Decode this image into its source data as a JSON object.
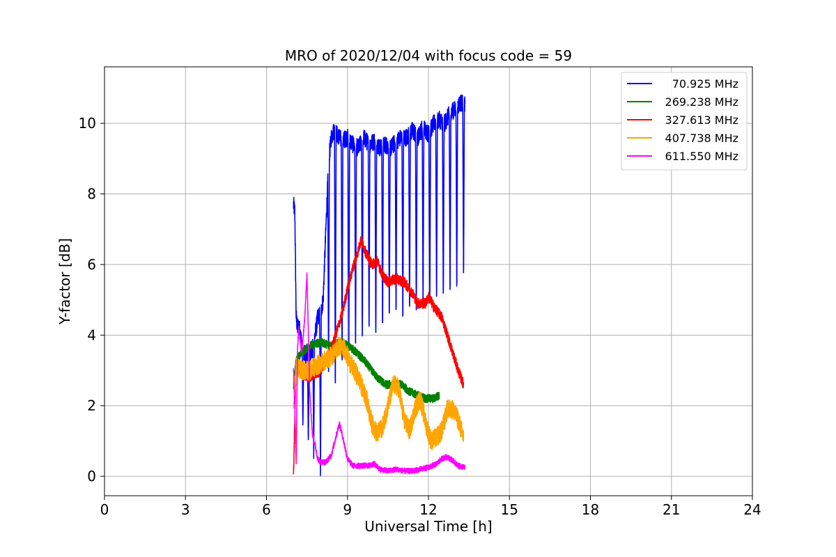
{
  "chart_data": {
    "type": "line",
    "title": "MRO of 2020/12/04 with focus code = 59",
    "xlabel": "Universal Time [h]",
    "ylabel": "Y-factor [dB]",
    "xlim": [
      0,
      24
    ],
    "ylim": [
      -0.55,
      11.6
    ],
    "x_ticks": [
      0,
      3,
      6,
      9,
      12,
      15,
      18,
      21,
      24
    ],
    "y_ticks": [
      0,
      2,
      4,
      6,
      8,
      10
    ],
    "x_tick_labels": [
      "0",
      "3",
      "6",
      "9",
      "12",
      "15",
      "18",
      "21",
      "24"
    ],
    "y_tick_labels": [
      "0",
      "2",
      "4",
      "6",
      "8",
      "10"
    ],
    "grid": true,
    "legend_position": "top-right",
    "legend_font": "small",
    "series": [
      {
        "name": "70.925 MHz",
        "color": "#0000ff",
        "x": [
          7.0,
          7.05,
          7.1,
          7.15,
          7.2,
          7.3,
          7.4,
          7.5,
          7.6,
          7.7,
          7.8,
          7.9,
          8.0,
          8.1,
          8.2,
          8.3,
          8.4,
          8.5,
          8.6,
          8.7,
          8.8,
          9.0,
          9.2,
          9.4,
          9.6,
          9.8,
          10.0,
          10.2,
          10.4,
          10.6,
          10.8,
          11.0,
          11.2,
          11.4,
          11.6,
          11.8,
          12.0,
          12.2,
          12.4,
          12.6,
          12.8,
          13.0,
          13.2,
          13.35
        ],
        "y": [
          7.7,
          7.5,
          4.5,
          4.2,
          4.3,
          3.8,
          3.5,
          3.4,
          3.4,
          3.6,
          4.0,
          4.5,
          4.6,
          5.0,
          7.0,
          8.9,
          9.6,
          9.8,
          9.7,
          9.6,
          9.5,
          9.6,
          9.4,
          9.3,
          9.6,
          9.4,
          9.5,
          9.3,
          9.4,
          9.3,
          9.5,
          9.6,
          9.6,
          9.8,
          9.6,
          9.9,
          9.7,
          10.0,
          10.1,
          10.0,
          10.3,
          10.4,
          10.6,
          10.5
        ],
        "dips_x": [
          7.35,
          7.55,
          7.75,
          8.0,
          8.3,
          8.55,
          8.8,
          9.05,
          9.3,
          9.55,
          9.8,
          10.05,
          10.3,
          10.55,
          10.8,
          11.05,
          11.3,
          11.55,
          11.8,
          12.05,
          12.3,
          12.55,
          12.8,
          13.05,
          13.3
        ],
        "dips_y": [
          1.4,
          0.9,
          0.5,
          0.0,
          2.6,
          2.2,
          2.9,
          3.3,
          3.4,
          3.6,
          3.9,
          3.7,
          4.0,
          4.3,
          4.4,
          4.2,
          4.5,
          4.4,
          4.6,
          4.7,
          4.8,
          4.9,
          5.0,
          5.1,
          5.5
        ]
      },
      {
        "name": "269.238 MHz",
        "color": "#008000",
        "x": [
          7.0,
          7.1,
          7.3,
          7.6,
          8.0,
          8.4,
          8.8,
          9.2,
          9.6,
          9.9,
          10.1,
          10.4,
          10.7,
          11.0,
          11.3,
          11.6,
          11.9,
          12.2,
          12.4
        ],
        "y": [
          2.5,
          3.3,
          3.5,
          3.7,
          3.8,
          3.7,
          3.8,
          3.6,
          3.3,
          3.0,
          2.8,
          2.6,
          2.6,
          2.6,
          2.4,
          2.3,
          2.2,
          2.2,
          2.3
        ]
      },
      {
        "name": "327.613 MHz",
        "color": "#ff0000",
        "x": [
          7.0,
          7.1,
          7.3,
          7.6,
          8.0,
          8.4,
          8.8,
          9.0,
          9.2,
          9.4,
          9.5,
          9.7,
          9.9,
          10.1,
          10.3,
          10.5,
          10.8,
          11.1,
          11.4,
          11.6,
          11.9,
          12.0,
          12.2,
          12.5,
          12.7,
          12.9,
          13.1,
          13.3
        ],
        "y": [
          0.0,
          3.2,
          2.9,
          2.8,
          3.0,
          3.6,
          4.6,
          5.3,
          5.9,
          6.4,
          6.7,
          6.3,
          6.0,
          6.1,
          5.7,
          5.5,
          5.6,
          5.5,
          5.2,
          4.9,
          4.9,
          5.1,
          4.8,
          4.5,
          4.0,
          3.5,
          3.0,
          2.6
        ]
      },
      {
        "name": "407.738 MHz",
        "color": "#ffa500",
        "x": [
          7.0,
          7.1,
          7.3,
          7.6,
          8.0,
          8.4,
          8.7,
          8.9,
          9.1,
          9.4,
          9.7,
          9.9,
          10.1,
          10.3,
          10.5,
          10.7,
          10.9,
          11.1,
          11.3,
          11.5,
          11.7,
          11.9,
          12.1,
          12.3,
          12.5,
          12.7,
          12.9,
          13.1,
          13.3
        ],
        "y": [
          2.0,
          3.1,
          3.0,
          3.0,
          3.2,
          3.4,
          3.7,
          3.6,
          3.2,
          2.8,
          2.2,
          1.5,
          1.2,
          1.4,
          2.0,
          2.6,
          2.5,
          1.6,
          1.3,
          1.9,
          2.2,
          1.5,
          1.0,
          1.1,
          1.3,
          1.9,
          1.9,
          1.6,
          1.1
        ]
      },
      {
        "name": "611.550 MHz",
        "color": "#ff00ff",
        "x": [
          7.0,
          7.05,
          7.1,
          7.15,
          7.2,
          7.3,
          7.4,
          7.5,
          7.6,
          7.7,
          7.8,
          7.9,
          8.0,
          8.2,
          8.4,
          8.6,
          8.7,
          8.8,
          9.0,
          9.2,
          9.5,
          9.8,
          10.0,
          10.2,
          10.5,
          10.8,
          11.1,
          11.4,
          11.7,
          12.0,
          12.3,
          12.5,
          12.7,
          12.9,
          13.1,
          13.35
        ],
        "y": [
          3.0,
          2.0,
          0.3,
          3.6,
          4.2,
          3.5,
          4.3,
          5.7,
          2.5,
          1.2,
          0.9,
          0.5,
          0.4,
          0.4,
          0.6,
          1.2,
          1.5,
          1.2,
          0.5,
          0.3,
          0.3,
          0.3,
          0.35,
          0.2,
          0.15,
          0.2,
          0.15,
          0.15,
          0.2,
          0.25,
          0.35,
          0.5,
          0.55,
          0.45,
          0.3,
          0.25
        ]
      }
    ]
  }
}
